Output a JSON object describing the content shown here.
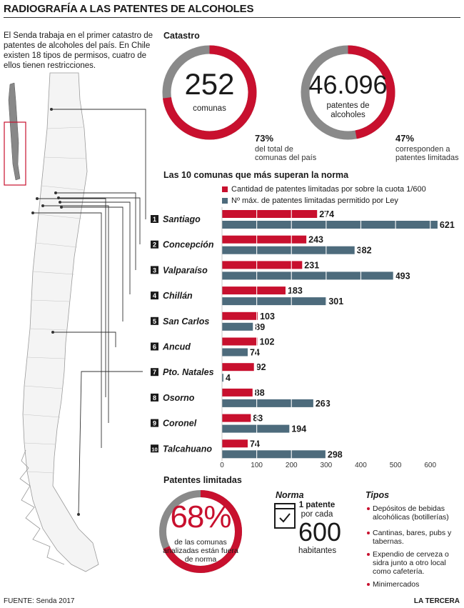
{
  "title": "RADIOGRAFÍA A LAS PATENTES DE ALCOHOLES",
  "intro": "El Senda trabaja en el primer catastro de patentes de alcoholes del país. En Chile existen 18 tipos de permisos, cuatro de ellos tienen restricciones.",
  "catastro": {
    "heading": "Catastro",
    "comunas": {
      "value": "252",
      "label": "comunas",
      "pct": "73%",
      "pct_fraction": 0.73,
      "note": "del total de comunas del país"
    },
    "patentes": {
      "value": "46.096",
      "label": "patentes de alcoholes",
      "pct": "47%",
      "pct_fraction": 0.47,
      "note": "corresponden a patentes limitadas"
    }
  },
  "chart_data": {
    "type": "bar",
    "title": "Las 10 comunas que más superan la norma",
    "orientation": "horizontal",
    "categories": [
      "Santiago",
      "Concepción",
      "Valparaíso",
      "Chillán",
      "San Carlos",
      "Ancud",
      "Pto. Natales",
      "Osorno",
      "Coronel",
      "Talcahuano"
    ],
    "ranks": [
      "1",
      "2",
      "3",
      "4",
      "5",
      "6",
      "7",
      "8",
      "9",
      "10"
    ],
    "series": [
      {
        "name": "Cantidad de patentes limitadas por sobre la cuota 1/600",
        "color": "#c8102e",
        "values": [
          274,
          243,
          231,
          183,
          103,
          102,
          92,
          88,
          83,
          74
        ]
      },
      {
        "name": "Nº máx. de patentes limitadas permitido por Ley",
        "color": "#4d6b7c",
        "values": [
          621,
          382,
          493,
          301,
          89,
          74,
          4,
          263,
          194,
          298
        ]
      }
    ],
    "xlim": [
      0,
      650
    ],
    "xticks": [
      0,
      100,
      200,
      300,
      400,
      500,
      600
    ],
    "legend": "top"
  },
  "limitadas": {
    "heading": "Patentes limitadas",
    "pct": "68%",
    "pct_fraction": 0.68,
    "text": "de las comunas analizadas están fuera de norma"
  },
  "norma": {
    "heading": "Norma",
    "line1": "1 patente",
    "line2": "por cada",
    "number": "600",
    "line3": "habitantes"
  },
  "tipos": {
    "heading": "Tipos",
    "items": [
      "Depósitos de bebidas alcohólicas (botillerías)",
      "Cantinas, bares, pubs y tabernas.",
      "Expendio de cerveza o sidra junto a otro local como cafetería.",
      "Minimercados"
    ]
  },
  "footer": {
    "source": "FUENTE: Senda 2017",
    "brand": "LA TERCERA"
  },
  "colors": {
    "accent": "#c8102e",
    "steel": "#4d6b7c",
    "gray": "#8a8a8a"
  }
}
